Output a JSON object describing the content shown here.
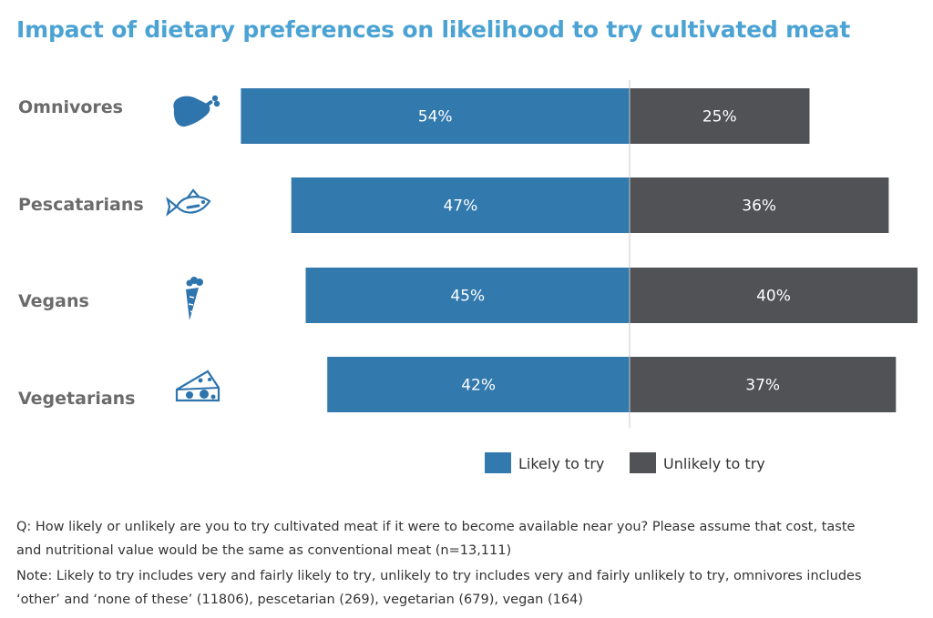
{
  "title": "Impact of dietary preferences on likelihood to try cultivated meat",
  "colors": {
    "title": "#4ba3d3",
    "likely": "#3279ae",
    "unlikely": "#505256",
    "row_label": "#6b6b6b",
    "icon": "#2e74ad",
    "divider": "#c8c8c8"
  },
  "chart_data": {
    "type": "bar",
    "orientation": "horizontal-diverging",
    "categories": [
      "Omnivores",
      "Pescatarians",
      "Vegans",
      "Vegetarians"
    ],
    "category_icons": [
      "meat-icon",
      "fish-icon",
      "carrot-icon",
      "cheese-icon"
    ],
    "series": [
      {
        "name": "Likely to try",
        "values": [
          54,
          47,
          45,
          42
        ],
        "labels": [
          "54%",
          "47%",
          "45%",
          "42%"
        ],
        "color": "#3279ae"
      },
      {
        "name": "Unlikely to try",
        "values": [
          25,
          36,
          40,
          37
        ],
        "labels": [
          "25%",
          "36%",
          "40%",
          "37%"
        ],
        "color": "#505256"
      }
    ],
    "unit": "%",
    "legend_position": "bottom-right",
    "grid": false
  },
  "footnotes": [
    "Q: How likely or unlikely are you to try cultivated meat if it were to become available near you? Please assume that cost, taste",
    "and nutritional value would be the same as conventional meat (n=13,111)",
    "Note: Likely to try includes very and fairly likely to try, unlikely to try includes very and fairly unlikely to try, omnivores includes",
    "‘other’ and ‘none of these’ (11806), pescetarian (269), vegetarian (679), vegan (164)"
  ]
}
